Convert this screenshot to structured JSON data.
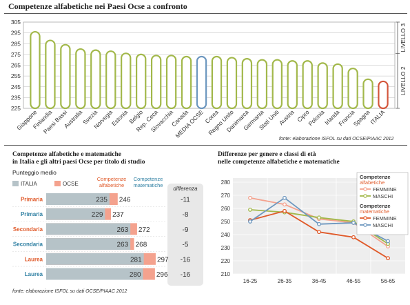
{
  "title": "Competenze alfabetiche nei Paesi Ocse a confronto",
  "colors": {
    "olive": "#a2b84a",
    "italy": "#d4553a",
    "ocse": "#6d97bf",
    "teal": "#2e7fa2",
    "orange": "#e05a2a",
    "pink": "#f4a28e",
    "gray": "#b6c3c8"
  },
  "chart_data": [
    {
      "type": "bar",
      "title": "Competenze alfabetiche nei Paesi Ocse a confronto",
      "categories": [
        "Giappone",
        "Finlandia",
        "Paesi Bassi",
        "Australia",
        "Svezia",
        "Norvegia",
        "Estonia",
        "Belgio",
        "Rep. Ceca",
        "Slovacchia",
        "Canada",
        "MEDIA OCSE",
        "Corea",
        "Regno Unito",
        "Danimarca",
        "Germania",
        "Stati Uniti",
        "Austria",
        "Cipro",
        "Polonia",
        "Irlanda",
        "Francia",
        "Spagna",
        "ITALIA"
      ],
      "values": [
        296,
        288,
        284,
        280,
        279,
        278,
        276,
        275,
        274,
        274,
        273,
        273,
        273,
        272,
        271,
        270,
        270,
        269,
        269,
        267,
        266,
        262,
        252,
        250
      ],
      "yticks": [
        225,
        235,
        245,
        255,
        265,
        275,
        285,
        295,
        305
      ],
      "ylim": [
        225,
        305
      ],
      "bands": [
        {
          "label": "LIVELLO 3",
          "from": 276,
          "to": 305
        },
        {
          "label": "LIVELLO 2",
          "from": 225,
          "to": 276
        }
      ],
      "source": "fonte: elaborazione ISFOL su dati OCSE/PIAAC 2012"
    },
    {
      "type": "bar",
      "title": "Competenze alfabetiche e matematiche\nin Italia e gli altri paesi Ocse per titolo di studio",
      "subtitle": "Punteggio medio",
      "legend": {
        "italia": "ITALIA",
        "ocse": "OCSE"
      },
      "col_alfabetiche": "Competenze\nalfabetiche",
      "col_matematiche": "Competenze\nmatematiche",
      "diff_header": "differenza",
      "rows": [
        {
          "label": "Primaria",
          "type": "alfabetiche",
          "italia": 235,
          "ocse": 246,
          "diff": "-11"
        },
        {
          "label": "Primaria",
          "type": "matematiche",
          "italia": 229,
          "ocse": 237,
          "diff": "-8"
        },
        {
          "label": "Secondaria",
          "type": "alfabetiche",
          "italia": 263,
          "ocse": 272,
          "diff": "-9"
        },
        {
          "label": "Secondaria",
          "type": "matematiche",
          "italia": 263,
          "ocse": 268,
          "diff": "-5"
        },
        {
          "label": "Laurea",
          "type": "alfabetiche",
          "italia": 281,
          "ocse": 297,
          "diff": "-16"
        },
        {
          "label": "Laurea",
          "type": "matematiche",
          "italia": 280,
          "ocse": 296,
          "diff": "-16"
        }
      ],
      "source": "fonte: elaborazione ISFOL su dati OCSE/PIAAC 2012"
    },
    {
      "type": "line",
      "title": "Differenze per genere e classi di età\nnelle competenze alfabetiche e matematiche",
      "categories": [
        "16-25",
        "26-35",
        "36-45",
        "46-55",
        "56-65"
      ],
      "ylim": [
        210,
        280
      ],
      "yticks": [
        210,
        220,
        230,
        240,
        250,
        260,
        270,
        280
      ],
      "legend_groups": [
        {
          "title": "Competenze",
          "subtitle": "alfabetiche",
          "items": [
            "FEMMINE",
            "MASCHI"
          ]
        },
        {
          "title": "Competenze",
          "subtitle": "matematiche",
          "items": [
            "FEMMINE",
            "MASCHI"
          ]
        }
      ],
      "series": [
        {
          "name": "FEMMINE",
          "group": "alfabetiche",
          "color": "#f4a28e",
          "values": [
            268,
            263,
            252,
            249,
            231
          ]
        },
        {
          "name": "MASCHI",
          "group": "alfabetiche",
          "color": "#a2b84a",
          "values": [
            259,
            257,
            253,
            250,
            233
          ]
        },
        {
          "name": "FEMMINE",
          "group": "matematiche",
          "color": "#e05a2a",
          "values": [
            251,
            258,
            242,
            238,
            222
          ]
        },
        {
          "name": "MASCHI",
          "group": "matematiche",
          "color": "#6d97bf",
          "values": [
            250,
            268,
            248,
            249,
            235
          ]
        }
      ]
    }
  ]
}
